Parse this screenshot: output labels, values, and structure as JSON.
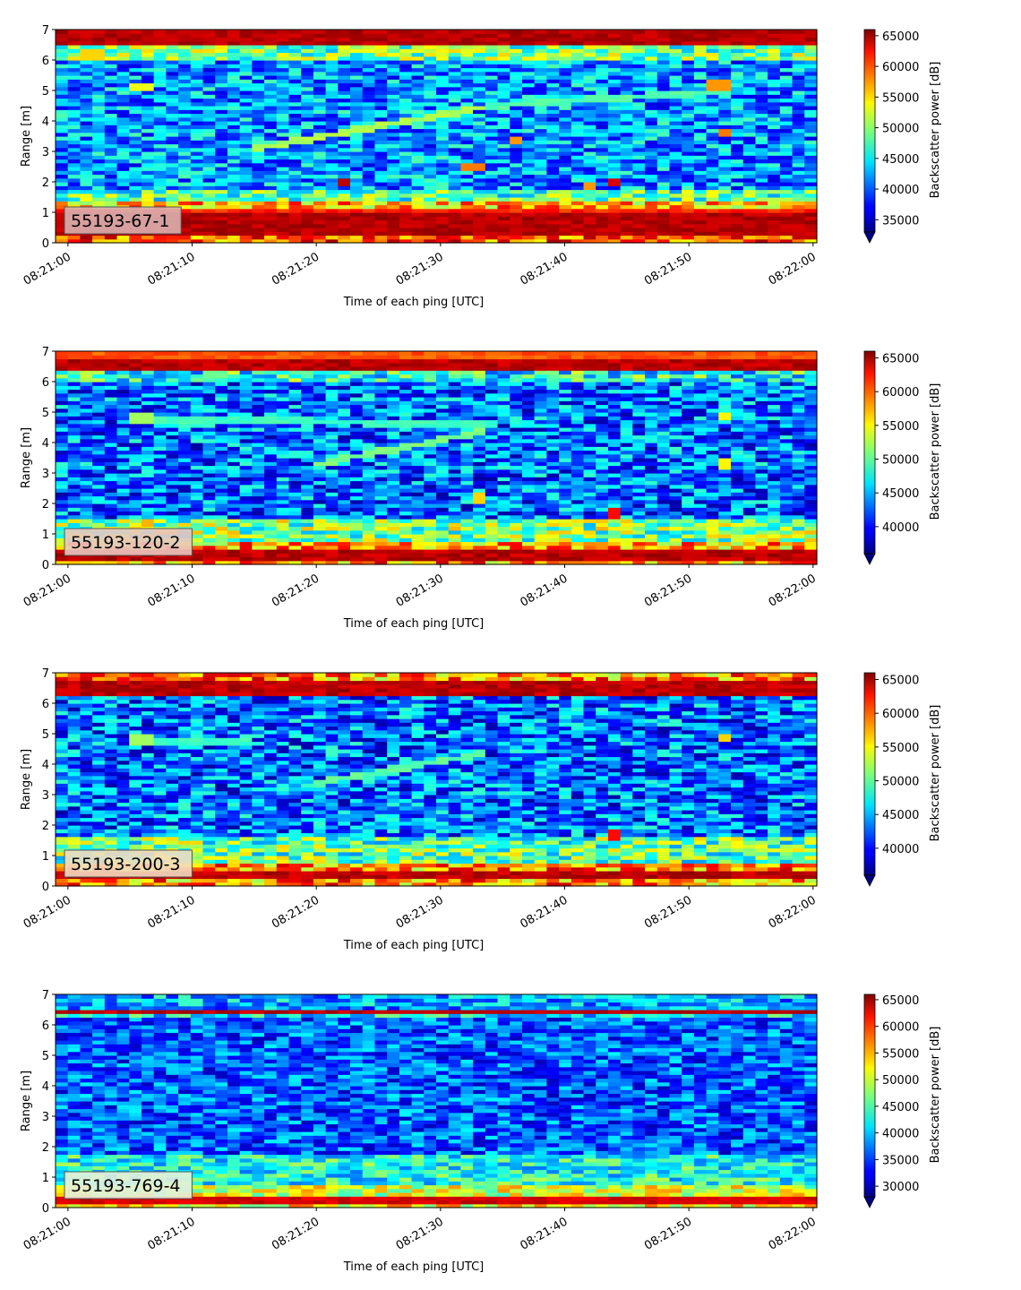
{
  "chart_data": [
    {
      "type": "heatmap",
      "label": "55193-67-1",
      "xlabel": "Time of each ping [UTC]",
      "ylabel": "Range [m]",
      "x_ticks": [
        "08:21:00",
        "08:21:10",
        "08:21:20",
        "08:21:30",
        "08:21:40",
        "08:21:50",
        "08:22:00"
      ],
      "x_range_seconds": [
        -1,
        60.3
      ],
      "y_ticks": [
        "0",
        "1",
        "2",
        "3",
        "4",
        "5",
        "6",
        "7"
      ],
      "ylim": [
        0,
        7
      ],
      "colorbar_label": "Backscatter power [dB]",
      "colorbar_ticks": [
        "35000",
        "40000",
        "45000",
        "50000",
        "55000",
        "60000",
        "65000"
      ],
      "color_range": [
        33000,
        66000
      ],
      "colormap": "jet",
      "label_box_color": "#dab0b0",
      "bands": [
        {
          "from": 0.0,
          "to": 0.25,
          "value": 59000
        },
        {
          "from": 0.25,
          "to": 1.0,
          "value": 65500
        },
        {
          "from": 1.0,
          "to": 1.15,
          "value": 62000
        },
        {
          "from": 1.15,
          "to": 1.4,
          "value": 56000
        },
        {
          "from": 1.4,
          "to": 1.8,
          "value": 48000
        },
        {
          "from": 1.8,
          "to": 6.0,
          "value": 42000
        },
        {
          "from": 6.0,
          "to": 6.5,
          "value": 49000
        },
        {
          "from": 6.5,
          "to": 7.0,
          "value": 65500
        }
      ],
      "tracks": [
        {
          "t0": 15,
          "r0": 3.1,
          "t1": 34,
          "r1": 4.5,
          "value": 51000
        },
        {
          "t0": 34,
          "r0": 4.5,
          "t1": 53,
          "r1": 5.0,
          "value": 48000
        }
      ],
      "spots": [
        {
          "t": 22,
          "r": 2.0,
          "value": 64000
        },
        {
          "t": 32.5,
          "r": 2.5,
          "value": 58000
        },
        {
          "t": 36,
          "r": 3.4,
          "value": 57000
        },
        {
          "t": 44,
          "r": 2.0,
          "value": 63000
        },
        {
          "t": 42,
          "r": 1.9,
          "value": 57000
        },
        {
          "t": 53,
          "r": 3.6,
          "value": 58000
        },
        {
          "t": 52.5,
          "r": 5.2,
          "value": 57000
        },
        {
          "t": 6,
          "r": 5.1,
          "value": 53000
        },
        {
          "t": 2,
          "r": 6.2,
          "value": 55000
        }
      ]
    },
    {
      "type": "heatmap",
      "label": "55193-120-2",
      "xlabel": "Time of each ping [UTC]",
      "ylabel": "Range [m]",
      "x_ticks": [
        "08:21:00",
        "08:21:10",
        "08:21:20",
        "08:21:30",
        "08:21:40",
        "08:21:50",
        "08:22:00"
      ],
      "x_range_seconds": [
        -1,
        60.3
      ],
      "y_ticks": [
        "0",
        "1",
        "2",
        "3",
        "4",
        "5",
        "6",
        "7"
      ],
      "ylim": [
        0,
        7
      ],
      "colorbar_label": "Backscatter power [dB]",
      "colorbar_ticks": [
        "40000",
        "45000",
        "50000",
        "55000",
        "60000",
        "65000"
      ],
      "color_range": [
        36000,
        66000
      ],
      "colormap": "jet",
      "label_box_color": "#e8c8c0",
      "bands": [
        {
          "from": 0.0,
          "to": 0.15,
          "value": 58000
        },
        {
          "from": 0.15,
          "to": 0.45,
          "value": 65500
        },
        {
          "from": 0.45,
          "to": 0.8,
          "value": 57000
        },
        {
          "from": 0.8,
          "to": 1.5,
          "value": 51000
        },
        {
          "from": 1.5,
          "to": 6.0,
          "value": 43000
        },
        {
          "from": 6.0,
          "to": 6.35,
          "value": 48000
        },
        {
          "from": 6.35,
          "to": 6.75,
          "value": 65500
        },
        {
          "from": 6.75,
          "to": 7.0,
          "value": 61000
        }
      ],
      "tracks": [
        {
          "t0": 5,
          "r0": 4.8,
          "t1": 35,
          "r1": 4.6,
          "value": 49000
        },
        {
          "t0": 20,
          "r0": 3.3,
          "t1": 34,
          "r1": 4.4,
          "value": 51000
        }
      ],
      "spots": [
        {
          "t": 44,
          "r": 1.7,
          "value": 62000
        },
        {
          "t": 33,
          "r": 2.2,
          "value": 56000
        },
        {
          "t": 53,
          "r": 3.3,
          "value": 55000
        },
        {
          "t": 53,
          "r": 4.9,
          "value": 55000
        },
        {
          "t": 6,
          "r": 4.8,
          "value": 52000
        }
      ]
    },
    {
      "type": "heatmap",
      "label": "55193-200-3",
      "xlabel": "Time of each ping [UTC]",
      "ylabel": "Range [m]",
      "x_ticks": [
        "08:21:00",
        "08:21:10",
        "08:21:20",
        "08:21:30",
        "08:21:40",
        "08:21:50",
        "08:22:00"
      ],
      "x_range_seconds": [
        -1,
        60.3
      ],
      "y_ticks": [
        "0",
        "1",
        "2",
        "3",
        "4",
        "5",
        "6",
        "7"
      ],
      "ylim": [
        0,
        7
      ],
      "colorbar_label": "Backscatter power [dB]",
      "colorbar_ticks": [
        "40000",
        "45000",
        "50000",
        "55000",
        "60000",
        "65000"
      ],
      "color_range": [
        36000,
        66000
      ],
      "colormap": "jet",
      "label_box_color": "#f2dcc0",
      "bands": [
        {
          "from": 0.0,
          "to": 0.2,
          "value": 58000
        },
        {
          "from": 0.2,
          "to": 0.45,
          "value": 65500
        },
        {
          "from": 0.45,
          "to": 0.8,
          "value": 58000
        },
        {
          "from": 0.8,
          "to": 1.6,
          "value": 50000
        },
        {
          "from": 1.6,
          "to": 6.2,
          "value": 43000
        },
        {
          "from": 6.2,
          "to": 6.7,
          "value": 65500
        },
        {
          "from": 6.7,
          "to": 7.0,
          "value": 58000
        }
      ],
      "tracks": [
        {
          "t0": 20,
          "r0": 3.4,
          "t1": 34,
          "r1": 4.4,
          "value": 50000
        },
        {
          "t0": 5,
          "r0": 4.8,
          "t1": 15,
          "r1": 4.7,
          "value": 49000
        }
      ],
      "spots": [
        {
          "t": 44,
          "r": 1.7,
          "value": 62000
        },
        {
          "t": 53,
          "r": 4.9,
          "value": 56000
        },
        {
          "t": 6,
          "r": 4.8,
          "value": 52000
        }
      ]
    },
    {
      "type": "heatmap",
      "label": "55193-769-4",
      "xlabel": "Time of each ping [UTC]",
      "ylabel": "Range [m]",
      "x_ticks": [
        "08:21:00",
        "08:21:10",
        "08:21:20",
        "08:21:30",
        "08:21:40",
        "08:21:50",
        "08:22:00"
      ],
      "x_range_seconds": [
        -1,
        60.3
      ],
      "y_ticks": [
        "0",
        "1",
        "2",
        "3",
        "4",
        "5",
        "6",
        "7"
      ],
      "ylim": [
        0,
        7
      ],
      "colorbar_label": "Backscatter power [dB]",
      "colorbar_ticks": [
        "30000",
        "35000",
        "40000",
        "45000",
        "50000",
        "55000",
        "60000",
        "65000"
      ],
      "color_range": [
        28000,
        66000
      ],
      "colormap": "jet",
      "label_box_color": "#e4f0dc",
      "bands": [
        {
          "from": 0.0,
          "to": 0.15,
          "value": 52000
        },
        {
          "from": 0.15,
          "to": 0.35,
          "value": 64000
        },
        {
          "from": 0.35,
          "to": 0.7,
          "value": 50000
        },
        {
          "from": 0.7,
          "to": 1.8,
          "value": 43000
        },
        {
          "from": 1.8,
          "to": 6.2,
          "value": 36000
        },
        {
          "from": 6.2,
          "to": 6.35,
          "value": 42000
        },
        {
          "from": 6.35,
          "to": 6.55,
          "value": 65000
        },
        {
          "from": 6.55,
          "to": 7.0,
          "value": 39000
        }
      ],
      "tracks": [],
      "spots": []
    }
  ]
}
